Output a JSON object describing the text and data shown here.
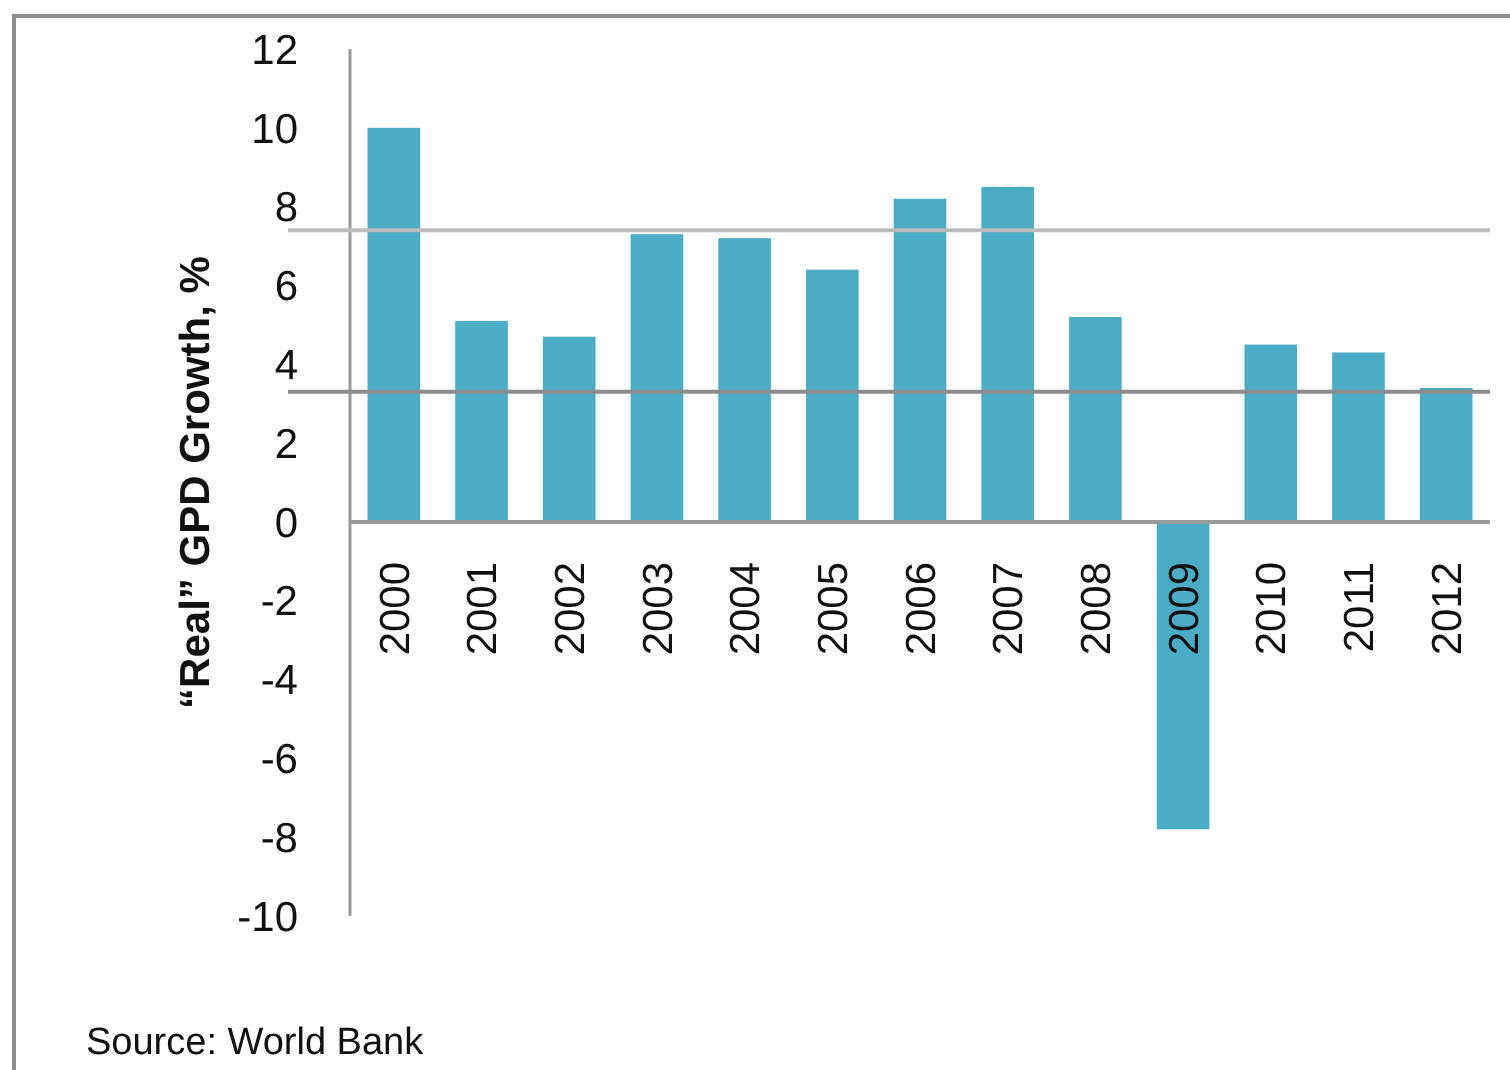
{
  "chart_data": {
    "type": "bar",
    "ylabel": "“Real” GPD Growth, %",
    "categories": [
      "2000",
      "2001",
      "2002",
      "2003",
      "2004",
      "2005",
      "2006",
      "2007",
      "2008",
      "2009",
      "2010",
      "2011",
      "2012"
    ],
    "values": [
      10.0,
      5.1,
      4.7,
      7.3,
      7.2,
      6.4,
      8.2,
      8.5,
      5.2,
      -7.8,
      4.5,
      4.3,
      3.4
    ],
    "color": "#4bacc6",
    "ylim": [
      -10,
      12
    ],
    "yticks": [
      -10,
      -8,
      -6,
      -4,
      -2,
      0,
      2,
      4,
      6,
      8,
      10,
      12
    ],
    "ref_lines": [
      {
        "axis": "y",
        "value": 7.4,
        "color": "#bdbdbd"
      },
      {
        "axis": "y",
        "value": 3.3,
        "color": "#8c8c8c"
      }
    ],
    "annotations": [
      "Source: World Bank"
    ]
  }
}
